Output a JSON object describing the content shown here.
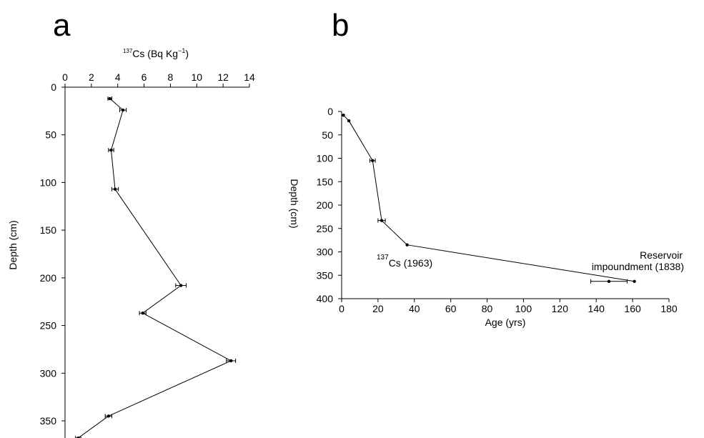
{
  "panels": {
    "a": {
      "letter": "a"
    },
    "b": {
      "letter": "b"
    }
  },
  "chart_data": [
    {
      "id": "a",
      "type": "line",
      "title": "",
      "xlabel": "137Cs (Bq Kg-1)",
      "xlabel_parts": {
        "sup_mass": "137",
        "main": "Cs (Bq Kg",
        "sup_exp": "−1",
        "close": ")"
      },
      "ylabel": "Depth (cm)",
      "x_axis_position": "top",
      "y_inverted": true,
      "xlim": [
        0,
        14
      ],
      "ylim": [
        0,
        370
      ],
      "xticks": [
        0,
        2,
        4,
        6,
        8,
        10,
        12,
        14
      ],
      "yticks": [
        0,
        50,
        100,
        150,
        200,
        250,
        300,
        350
      ],
      "grid": false,
      "series": [
        {
          "points": [
            {
              "x": 3.4,
              "y": 12,
              "xerr": 0.15
            },
            {
              "x": 4.4,
              "y": 24,
              "xerr": 0.25
            },
            {
              "x": 3.5,
              "y": 66,
              "xerr": 0.2
            },
            {
              "x": 3.8,
              "y": 107,
              "xerr": 0.25
            },
            {
              "x": 8.8,
              "y": 208,
              "xerr": 0.4
            },
            {
              "x": 5.9,
              "y": 237,
              "xerr": 0.25
            },
            {
              "x": 12.6,
              "y": 287,
              "xerr": 0.35
            },
            {
              "x": 3.3,
              "y": 345,
              "xerr": 0.25
            },
            {
              "x": 1.0,
              "y": 368,
              "xerr": 0.2
            }
          ]
        }
      ]
    },
    {
      "id": "b",
      "type": "line",
      "title": "",
      "xlabel": "Age (yrs)",
      "ylabel": "Depth (cm)",
      "y_inverted": true,
      "xlim": [
        0,
        180
      ],
      "ylim": [
        0,
        400
      ],
      "xticks": [
        0,
        20,
        40,
        60,
        80,
        100,
        120,
        140,
        160,
        180
      ],
      "yticks": [
        0,
        50,
        100,
        150,
        200,
        250,
        300,
        350,
        400
      ],
      "grid": false,
      "series": [
        {
          "points": [
            {
              "x": 1,
              "y": 8,
              "xerr": 0
            },
            {
              "x": 4,
              "y": 20,
              "xerr": 0
            },
            {
              "x": 17,
              "y": 105,
              "xerr": 1.5
            },
            {
              "x": 22,
              "y": 233,
              "xerr": 2
            },
            {
              "x": 36,
              "y": 285,
              "xerr": 0
            },
            {
              "x": 161,
              "y": 363,
              "xerr": 0
            }
          ]
        }
      ],
      "extra_points": [
        {
          "x": 147,
          "y": 363,
          "xlow": 137,
          "xhigh": 157
        }
      ],
      "annotations": [
        {
          "text_parts": {
            "sup": "137",
            "main": "Cs (1963)"
          },
          "text": "137Cs (1963)",
          "anchor": "start"
        },
        {
          "lines": [
            "Reservoir",
            "impoundment (1838)"
          ],
          "anchor": "end"
        }
      ]
    }
  ]
}
